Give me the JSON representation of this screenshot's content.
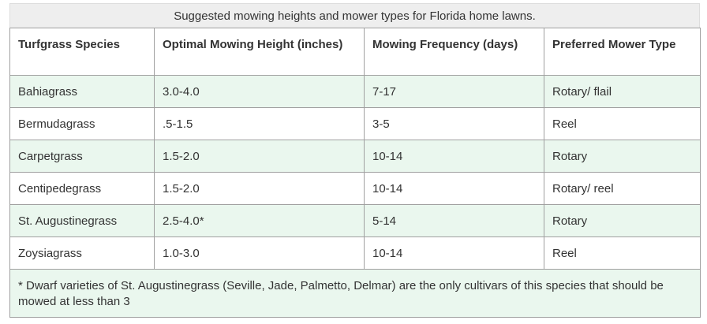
{
  "caption": "Suggested mowing heights and mower types for Florida home lawns.",
  "columns": [
    "Turfgrass Species",
    "Optimal Mowing Height (inches)",
    "Mowing Frequency (days)",
    "Preferred Mower Type"
  ],
  "rows": [
    [
      "Bahiagrass",
      "3.0-4.0",
      "7-17",
      "Rotary/ flail"
    ],
    [
      "Bermudagrass",
      ".5-1.5",
      "3-5",
      "Reel"
    ],
    [
      "Carpetgrass",
      "1.5-2.0",
      "10-14",
      "Rotary"
    ],
    [
      "Centipedegrass",
      "1.5-2.0",
      "10-14",
      "Rotary/ reel"
    ],
    [
      "St. Augustinegrass",
      "2.5-4.0*",
      "5-14",
      "Rotary"
    ],
    [
      "Zoysiagrass",
      "1.0-3.0",
      "10-14",
      "Reel"
    ]
  ],
  "footnote": "* Dwarf varieties of St. Augustinegrass (Seville, Jade, Palmetto, Delmar) are the only cultivars of this species that should be mowed at less than 3",
  "colors": {
    "caption_bg": "#eeeeee",
    "row_highlight": "#eaf7ee",
    "border": "#a0a0a0"
  }
}
